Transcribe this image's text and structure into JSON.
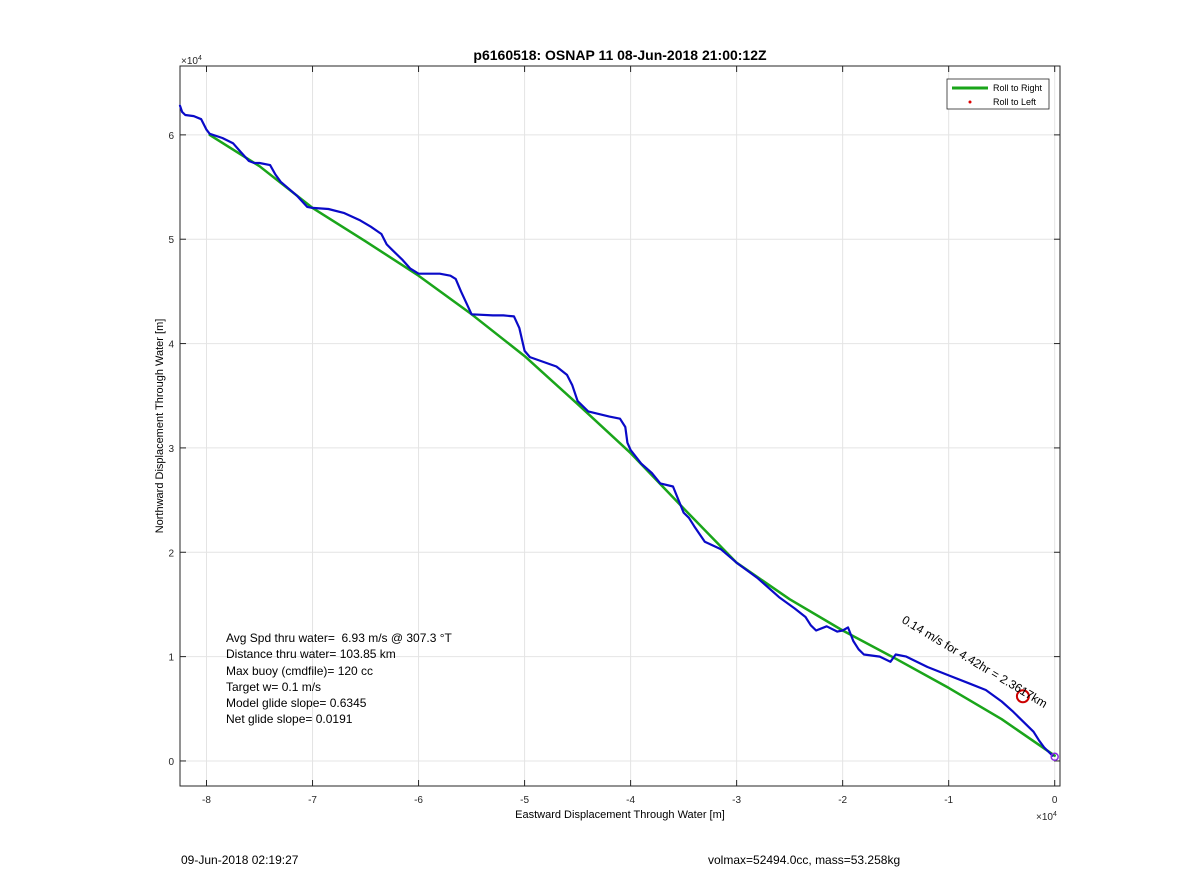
{
  "chart_data": {
    "type": "line",
    "title": "p6160518: OSNAP 11 08-Jun-2018 21:00:12Z",
    "xlabel": "Eastward Displacement Through Water [m]",
    "ylabel": "Northward Displacement Through Water [m]",
    "x_exponent_label": "×10",
    "x_exponent_power": "4",
    "y_exponent_label": "×10",
    "y_exponent_power": "4",
    "xlim": [
      -8.25,
      0.05
    ],
    "ylim": [
      -0.24,
      6.66
    ],
    "xticks": [
      -8,
      -7,
      -6,
      -5,
      -4,
      -3,
      -2,
      -1,
      0
    ],
    "xtick_labels": [
      "-8",
      "-7",
      "-6",
      "-5",
      "-4",
      "-3",
      "-2",
      "-1",
      "0"
    ],
    "yticks": [
      0,
      1,
      2,
      3,
      4,
      5,
      6
    ],
    "ytick_labels": [
      "0",
      "1",
      "2",
      "3",
      "4",
      "5",
      "6"
    ],
    "grid": true,
    "legend_position": "top-right",
    "legend": [
      {
        "name": "Roll to Right",
        "style": "line",
        "color": "#1aa51a"
      },
      {
        "name": "Roll to Left",
        "style": "dot",
        "color": "#e00000"
      }
    ],
    "series": [
      {
        "name": "Roll to Right",
        "color": "#1aa51a",
        "style": "line",
        "x": [
          -7.97,
          -7.5,
          -7.0,
          -6.5,
          -6.0,
          -5.5,
          -5.0,
          -4.5,
          -4.0,
          -3.5,
          -3.0,
          -2.5,
          -2.0,
          -1.5,
          -1.0,
          -0.5,
          0.0
        ],
        "y": [
          6.0,
          5.7,
          5.3,
          4.98,
          4.65,
          4.28,
          3.88,
          3.42,
          2.95,
          2.42,
          1.9,
          1.55,
          1.25,
          0.98,
          0.7,
          0.4,
          0.05
        ]
      },
      {
        "name": "",
        "color": "#0a0ac8",
        "style": "line",
        "x": [
          -8.25,
          -8.23,
          -8.2,
          -8.12,
          -8.05,
          -8.0,
          -7.97,
          -7.85,
          -7.75,
          -7.68,
          -7.6,
          -7.55,
          -7.5,
          -7.4,
          -7.35,
          -7.3,
          -7.15,
          -7.05,
          -7.0,
          -6.85,
          -6.7,
          -6.55,
          -6.45,
          -6.35,
          -6.3,
          -6.25,
          -6.15,
          -6.08,
          -6.0,
          -5.8,
          -5.7,
          -5.65,
          -5.6,
          -5.5,
          -5.3,
          -5.2,
          -5.1,
          -5.05,
          -5.0,
          -4.95,
          -4.7,
          -4.6,
          -4.55,
          -4.5,
          -4.4,
          -4.2,
          -4.1,
          -4.05,
          -4.03,
          -4.0,
          -3.9,
          -3.8,
          -3.72,
          -3.6,
          -3.5,
          -3.45,
          -3.4,
          -3.3,
          -3.15,
          -3.0,
          -2.8,
          -2.6,
          -2.45,
          -2.35,
          -2.3,
          -2.25,
          -2.15,
          -2.05,
          -2.0,
          -1.95,
          -1.9,
          -1.85,
          -1.8,
          -1.65,
          -1.55,
          -1.5,
          -1.4,
          -1.2,
          -1.0,
          -0.8,
          -0.65,
          -0.5,
          -0.4,
          -0.3,
          -0.2,
          -0.15,
          -0.1,
          -0.05,
          -0.02
        ],
        "y": [
          6.28,
          6.22,
          6.19,
          6.18,
          6.15,
          6.05,
          6.01,
          5.97,
          5.92,
          5.84,
          5.75,
          5.73,
          5.73,
          5.71,
          5.62,
          5.55,
          5.42,
          5.31,
          5.3,
          5.29,
          5.25,
          5.18,
          5.12,
          5.05,
          4.95,
          4.9,
          4.8,
          4.72,
          4.67,
          4.67,
          4.65,
          4.62,
          4.5,
          4.28,
          4.27,
          4.27,
          4.26,
          4.15,
          3.93,
          3.87,
          3.78,
          3.7,
          3.6,
          3.45,
          3.35,
          3.3,
          3.28,
          3.2,
          3.05,
          2.98,
          2.85,
          2.76,
          2.66,
          2.63,
          2.38,
          2.33,
          2.25,
          2.1,
          2.03,
          1.9,
          1.75,
          1.57,
          1.46,
          1.38,
          1.3,
          1.25,
          1.29,
          1.24,
          1.25,
          1.28,
          1.15,
          1.07,
          1.02,
          1.0,
          0.95,
          1.02,
          1.0,
          0.9,
          0.82,
          0.74,
          0.68,
          0.57,
          0.48,
          0.38,
          0.28,
          0.2,
          0.13,
          0.08,
          0.05
        ]
      }
    ],
    "annotations": [
      {
        "text": "0.14 m/s for 4.42hr = 2.3617km",
        "x": -1.45,
        "y": 1.33,
        "angle": 31,
        "color": "#000000"
      }
    ],
    "markers": [
      {
        "shape": "circle",
        "x": -0.3,
        "y": 0.62,
        "color": "#cc0000"
      },
      {
        "shape": "circle-small",
        "x": 0.0,
        "y": 0.04,
        "color": "#8a2be2"
      }
    ],
    "stats": [
      "Avg Spd thru water=  6.93 m/s @ 307.3 °T",
      "Distance thru water= 103.85 km",
      "Max buoy (cmdfile)= 120 cc",
      "Target w= 0.1 m/s",
      "Model glide slope= 0.6345",
      "Net glide slope= 0.0191"
    ]
  },
  "footer": {
    "left": "09-Jun-2018 02:19:27",
    "right": "volmax=52494.0cc, mass=53.258kg"
  }
}
